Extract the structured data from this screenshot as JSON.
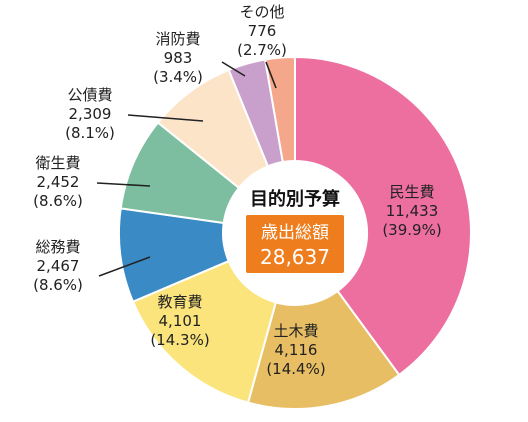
{
  "chart_data": {
    "type": "pie",
    "title": "目的別予算",
    "center_label": "歳出総額",
    "center_value": "28,637",
    "accent_color": "#EE7D1E",
    "slices": [
      {
        "name": "民生費",
        "value": 11433,
        "value_label": "11,433",
        "percent_label": "(39.9%)",
        "color": "#EC6FA0"
      },
      {
        "name": "土木費",
        "value": 4116,
        "value_label": "4,116",
        "percent_label": "(14.4%)",
        "color": "#E8BE64"
      },
      {
        "name": "教育費",
        "value": 4101,
        "value_label": "4,101",
        "percent_label": "(14.3%)",
        "color": "#FBE47C"
      },
      {
        "name": "総務費",
        "value": 2467,
        "value_label": "2,467",
        "percent_label": "(8.6%)",
        "color": "#3A8BC5"
      },
      {
        "name": "衛生費",
        "value": 2452,
        "value_label": "2,452",
        "percent_label": "(8.6%)",
        "color": "#7CBE9F"
      },
      {
        "name": "公債費",
        "value": 2309,
        "value_label": "2,309",
        "percent_label": "(8.1%)",
        "color": "#FCE4C8"
      },
      {
        "name": "消防費",
        "value": 983,
        "value_label": "983",
        "percent_label": "(3.4%)",
        "color": "#C9A0CC"
      },
      {
        "name": "その他",
        "value": 776,
        "value_label": "776",
        "percent_label": "(2.7%)",
        "color": "#F4A78A"
      }
    ]
  }
}
